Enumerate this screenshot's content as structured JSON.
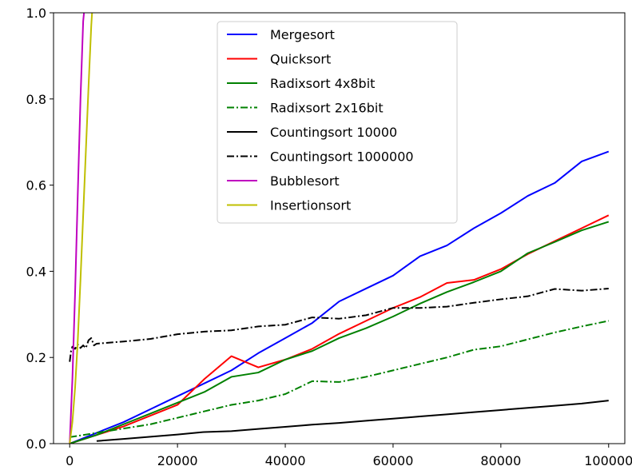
{
  "chart_data": {
    "type": "line",
    "title": "",
    "xlabel": "",
    "ylabel": "",
    "xlim": [
      -3000,
      103000
    ],
    "ylim": [
      0,
      1.0
    ],
    "xticks": [
      0,
      20000,
      40000,
      60000,
      80000,
      100000
    ],
    "xtick_labels": [
      "0",
      "20000",
      "40000",
      "60000",
      "80000",
      "100000"
    ],
    "yticks": [
      0,
      0.2,
      0.4,
      0.6,
      0.8,
      1.0
    ],
    "ytick_labels": [
      "0.0",
      "0.2",
      "0.4",
      "0.6",
      "0.8",
      "1.0"
    ],
    "grid": false,
    "legend_position": "top-center",
    "series": [
      {
        "name": "Mergesort",
        "color": "#0000ff",
        "dash": "solid",
        "points": [
          [
            0,
            0.0
          ],
          [
            5000,
            0.025
          ],
          [
            10000,
            0.05
          ],
          [
            15000,
            0.08
          ],
          [
            20000,
            0.11
          ],
          [
            25000,
            0.14
          ],
          [
            30000,
            0.17
          ],
          [
            35000,
            0.21
          ],
          [
            40000,
            0.245
          ],
          [
            45000,
            0.28
          ],
          [
            50000,
            0.33
          ],
          [
            55000,
            0.36
          ],
          [
            60000,
            0.39
          ],
          [
            65000,
            0.435
          ],
          [
            70000,
            0.46
          ],
          [
            75000,
            0.5
          ],
          [
            80000,
            0.535
          ],
          [
            85000,
            0.575
          ],
          [
            90000,
            0.605
          ],
          [
            95000,
            0.655
          ],
          [
            100000,
            0.678
          ]
        ]
      },
      {
        "name": "Quicksort",
        "color": "#ff0000",
        "dash": "solid",
        "points": [
          [
            0,
            0.0
          ],
          [
            5000,
            0.02
          ],
          [
            10000,
            0.04
          ],
          [
            15000,
            0.065
          ],
          [
            20000,
            0.09
          ],
          [
            25000,
            0.15
          ],
          [
            30000,
            0.203
          ],
          [
            35000,
            0.177
          ],
          [
            40000,
            0.195
          ],
          [
            45000,
            0.22
          ],
          [
            50000,
            0.255
          ],
          [
            55000,
            0.285
          ],
          [
            60000,
            0.315
          ],
          [
            65000,
            0.34
          ],
          [
            70000,
            0.373
          ],
          [
            75000,
            0.38
          ],
          [
            80000,
            0.405
          ],
          [
            85000,
            0.44
          ],
          [
            90000,
            0.47
          ],
          [
            95000,
            0.5
          ],
          [
            100000,
            0.53
          ]
        ]
      },
      {
        "name": "Radixsort 4x8bit",
        "color": "#008000",
        "dash": "solid",
        "points": [
          [
            0,
            0.0
          ],
          [
            5000,
            0.02
          ],
          [
            10000,
            0.045
          ],
          [
            15000,
            0.07
          ],
          [
            20000,
            0.095
          ],
          [
            25000,
            0.12
          ],
          [
            30000,
            0.155
          ],
          [
            35000,
            0.165
          ],
          [
            40000,
            0.195
          ],
          [
            45000,
            0.215
          ],
          [
            50000,
            0.245
          ],
          [
            55000,
            0.268
          ],
          [
            60000,
            0.295
          ],
          [
            65000,
            0.325
          ],
          [
            70000,
            0.352
          ],
          [
            75000,
            0.375
          ],
          [
            80000,
            0.4
          ],
          [
            85000,
            0.442
          ],
          [
            90000,
            0.468
          ],
          [
            95000,
            0.495
          ],
          [
            100000,
            0.515
          ]
        ]
      },
      {
        "name": "Radixsort 2x16bit",
        "color": "#008000",
        "dash": "dashdot",
        "points": [
          [
            0,
            0.015
          ],
          [
            5000,
            0.025
          ],
          [
            10000,
            0.035
          ],
          [
            15000,
            0.045
          ],
          [
            20000,
            0.06
          ],
          [
            25000,
            0.075
          ],
          [
            30000,
            0.09
          ],
          [
            35000,
            0.1
          ],
          [
            40000,
            0.115
          ],
          [
            45000,
            0.145
          ],
          [
            50000,
            0.143
          ],
          [
            55000,
            0.155
          ],
          [
            60000,
            0.17
          ],
          [
            65000,
            0.185
          ],
          [
            70000,
            0.2
          ],
          [
            75000,
            0.218
          ],
          [
            80000,
            0.226
          ],
          [
            85000,
            0.242
          ],
          [
            90000,
            0.258
          ],
          [
            95000,
            0.272
          ],
          [
            100000,
            0.285
          ]
        ]
      },
      {
        "name": "Countingsort 10000",
        "color": "#000000",
        "dash": "solid",
        "points": [
          [
            5000,
            0.006
          ],
          [
            10000,
            0.011
          ],
          [
            15000,
            0.016
          ],
          [
            20000,
            0.021
          ],
          [
            25000,
            0.027
          ],
          [
            30000,
            0.029
          ],
          [
            35000,
            0.034
          ],
          [
            40000,
            0.039
          ],
          [
            45000,
            0.044
          ],
          [
            50000,
            0.048
          ],
          [
            55000,
            0.053
          ],
          [
            60000,
            0.058
          ],
          [
            65000,
            0.063
          ],
          [
            70000,
            0.068
          ],
          [
            75000,
            0.073
          ],
          [
            80000,
            0.078
          ],
          [
            85000,
            0.083
          ],
          [
            90000,
            0.088
          ],
          [
            95000,
            0.093
          ],
          [
            100000,
            0.1
          ]
        ]
      },
      {
        "name": "Countingsort 1000000",
        "color": "#000000",
        "dash": "dashdot",
        "points": [
          [
            0,
            0.19
          ],
          [
            250,
            0.215
          ],
          [
            500,
            0.225
          ],
          [
            1000,
            0.22
          ],
          [
            1500,
            0.23
          ],
          [
            2000,
            0.222
          ],
          [
            2500,
            0.228
          ],
          [
            3000,
            0.222
          ],
          [
            3500,
            0.24
          ],
          [
            4000,
            0.245
          ],
          [
            4500,
            0.228
          ],
          [
            5000,
            0.232
          ],
          [
            10000,
            0.237
          ],
          [
            15000,
            0.243
          ],
          [
            20000,
            0.254
          ],
          [
            25000,
            0.26
          ],
          [
            30000,
            0.263
          ],
          [
            35000,
            0.272
          ],
          [
            40000,
            0.276
          ],
          [
            45000,
            0.293
          ],
          [
            50000,
            0.29
          ],
          [
            55000,
            0.298
          ],
          [
            60000,
            0.315
          ],
          [
            65000,
            0.315
          ],
          [
            70000,
            0.318
          ],
          [
            75000,
            0.327
          ],
          [
            80000,
            0.335
          ],
          [
            85000,
            0.342
          ],
          [
            90000,
            0.359
          ],
          [
            95000,
            0.355
          ],
          [
            100000,
            0.36
          ]
        ]
      },
      {
        "name": "Bubblesort",
        "color": "#bf00bf",
        "dash": "solid",
        "points": [
          [
            0,
            0.0
          ],
          [
            500,
            0.15
          ],
          [
            1000,
            0.35
          ],
          [
            1500,
            0.58
          ],
          [
            2000,
            0.8
          ],
          [
            2500,
            0.98
          ],
          [
            2650,
            1.0
          ]
        ]
      },
      {
        "name": "Insertionsort",
        "color": "#bfbf00",
        "dash": "solid",
        "points": [
          [
            0,
            0.0
          ],
          [
            500,
            0.05
          ],
          [
            1000,
            0.13
          ],
          [
            1500,
            0.24
          ],
          [
            2000,
            0.38
          ],
          [
            2500,
            0.53
          ],
          [
            3000,
            0.68
          ],
          [
            3500,
            0.83
          ],
          [
            4000,
            0.97
          ],
          [
            4150,
            1.0
          ]
        ]
      }
    ]
  }
}
